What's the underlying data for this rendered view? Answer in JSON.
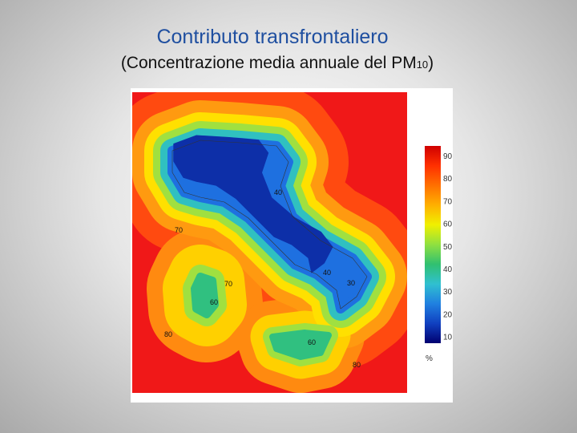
{
  "header": {
    "title": "Contributo transfrontaliero",
    "subtitle": "(Concentrazione media annuale del PM",
    "subtitle_subscript": "10",
    "subtitle_close": ")"
  },
  "map": {
    "contour_labels": [
      "70",
      "70",
      "80",
      "80",
      "40",
      "30",
      "40",
      "60",
      "60"
    ],
    "colorbar": {
      "ticks": [
        90,
        80,
        70,
        60,
        50,
        40,
        30,
        20,
        10
      ],
      "unit": "%"
    }
  }
}
